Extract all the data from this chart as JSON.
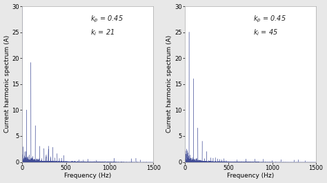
{
  "subplot1": {
    "kp_text": "$k_p$ = 0.45",
    "ki_text": "$k_i$ = 21"
  },
  "subplot2": {
    "kp_text": "$k_p$ = 0.45",
    "ki_text": "$k_i$ = 45"
  },
  "xlabel": "Frequency (Hz)",
  "ylabel": "Current harmonic spectrum (A)",
  "xlim": [
    0,
    1500
  ],
  "ylim": [
    0,
    30
  ],
  "yticks": [
    0,
    5,
    10,
    15,
    20,
    25,
    30
  ],
  "xticks": [
    0,
    500,
    1000,
    1500
  ],
  "line_color": "#2d3a8c",
  "face_color": "#ffffff",
  "fig_face_color": "#e8e8e8",
  "fontsize_label": 6.5,
  "fontsize_tick": 6,
  "fontsize_annot": 7
}
